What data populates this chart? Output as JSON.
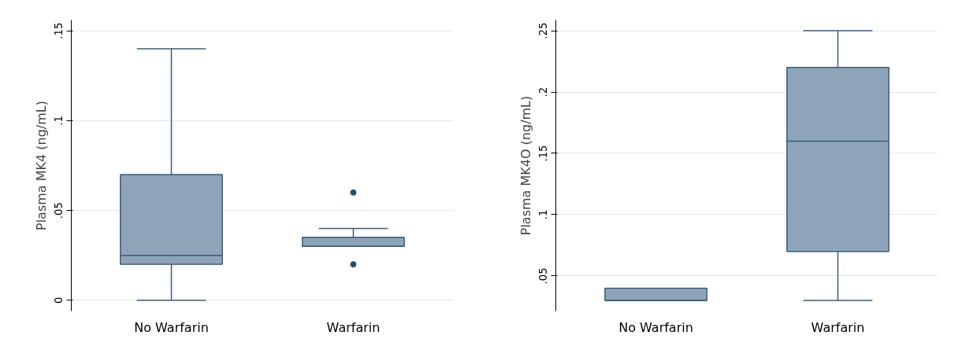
{
  "chart_data": [
    {
      "type": "box",
      "ylabel": "Plasma MK4 (ng/mL)",
      "categories": [
        "No Warfarin",
        "Warfarin"
      ],
      "ylim": [
        -0.006,
        0.156
      ],
      "yticks": [
        0,
        {
          "value": 0.05,
          "label": ".05"
        },
        {
          "value": 0.1,
          "label": ".1"
        },
        {
          "value": 0.15,
          "label": ".15"
        }
      ],
      "grid": "y",
      "series": [
        {
          "color": "#8ea5b9",
          "boxes": [
            {
              "low": 0,
              "q1": 0.02,
              "median": 0.025,
              "q3": 0.07,
              "high": 0.14
            },
            {
              "low": 0.03,
              "q1": 0.03,
              "median": 0.03,
              "q3": 0.035,
              "high": 0.04,
              "outliers": [
                0.06,
                0.02
              ]
            }
          ]
        }
      ]
    },
    {
      "type": "box",
      "ylabel": "Plasma MK4O (ng/mL)",
      "categories": [
        "No Warfarin",
        "Warfarin"
      ],
      "ylim": [
        0.0214,
        0.2587
      ],
      "yticks": [
        {
          "value": 0.05,
          "label": ".05"
        },
        {
          "value": 0.1,
          "label": ".1"
        },
        {
          "value": 0.15,
          "label": ".15"
        },
        {
          "value": 0.2,
          "label": ".2"
        },
        {
          "value": 0.25,
          "label": ".25"
        }
      ],
      "grid": "y",
      "series": [
        {
          "color": "#8ea5b9",
          "boxes": [
            {
              "low": 0.03,
              "q1": 0.03,
              "median": 0.03,
              "q3": 0.04,
              "high": 0.04
            },
            {
              "low": 0.03,
              "q1": 0.07,
              "median": 0.16,
              "q3": 0.22,
              "high": 0.25
            }
          ]
        }
      ]
    }
  ]
}
